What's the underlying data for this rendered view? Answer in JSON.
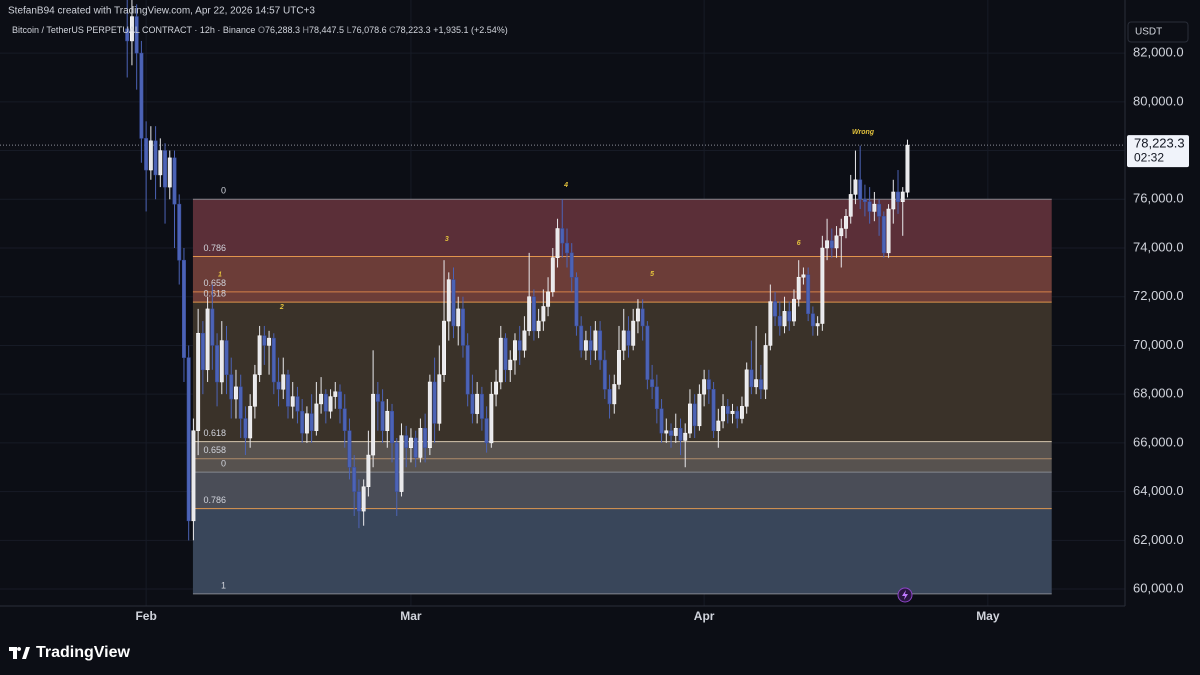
{
  "header": {
    "credit": "StefanB94 created with TradingView.com, Apr 22, 2026 14:57 UTC+3",
    "logo": "TradingView"
  },
  "chart_data": {
    "type": "candlestick",
    "symbol": "Bitcoin / TetherUS PERPETUAL CONTRACT · 12h · Binance",
    "ohlc_legend": [
      {
        "key": "O",
        "text": "76,288.3"
      },
      {
        "key": "H",
        "text": "78,447.5"
      },
      {
        "key": "L",
        "text": "76,078.6"
      },
      {
        "key": "C",
        "text": "78,223.3"
      }
    ],
    "change": "+1,935.1 (+2.54%)",
    "currency": "USDT",
    "last_price": {
      "value": 78223.3,
      "label": "78,223.3"
    },
    "countdown": "02:32",
    "up_color": "#e9e9ec",
    "down_color": "#4c63b6",
    "candles": [
      [
        83000,
        84500,
        81000,
        82500
      ],
      [
        82500,
        85000,
        81500,
        83500
      ],
      [
        83500,
        84000,
        80500,
        82000
      ],
      [
        82000,
        82500,
        77500,
        78500
      ],
      [
        78500,
        79200,
        75500,
        77200
      ],
      [
        77200,
        79000,
        76800,
        78400
      ],
      [
        78400,
        79000,
        76000,
        77000
      ],
      [
        77000,
        78500,
        76500,
        78000
      ],
      [
        78000,
        78300,
        75000,
        76500
      ],
      [
        76500,
        78000,
        76000,
        77700
      ],
      [
        77700,
        78000,
        74000,
        75800
      ],
      [
        75800,
        76200,
        72500,
        73500
      ],
      [
        73500,
        74000,
        68500,
        69500
      ],
      [
        69500,
        70000,
        62000,
        62800
      ],
      [
        62800,
        67000,
        62000,
        66500
      ],
      [
        66500,
        71500,
        65500,
        70500
      ],
      [
        70500,
        71000,
        68000,
        69000
      ],
      [
        69000,
        72000,
        68500,
        71500
      ],
      [
        71500,
        72500,
        69000,
        70000
      ],
      [
        70000,
        70500,
        67500,
        68500
      ],
      [
        68500,
        71000,
        68000,
        70200
      ],
      [
        70200,
        70800,
        68000,
        68800
      ],
      [
        68800,
        69500,
        67000,
        67800
      ],
      [
        67800,
        69000,
        67000,
        68300
      ],
      [
        68300,
        68800,
        66200,
        67000
      ],
      [
        67000,
        67500,
        65500,
        66200
      ],
      [
        66200,
        68000,
        65800,
        67500
      ],
      [
        67500,
        69200,
        67000,
        68800
      ],
      [
        68800,
        70800,
        68500,
        70400
      ],
      [
        70400,
        70800,
        69200,
        70000
      ],
      [
        70000,
        70600,
        68800,
        70300
      ],
      [
        70300,
        70500,
        68000,
        68500
      ],
      [
        68500,
        69500,
        67500,
        68200
      ],
      [
        68200,
        69500,
        67800,
        68800
      ],
      [
        68800,
        69000,
        67000,
        67500
      ],
      [
        67500,
        68500,
        67000,
        67900
      ],
      [
        67900,
        68300,
        66800,
        67300
      ],
      [
        67300,
        67800,
        66000,
        66400
      ],
      [
        66400,
        67500,
        66000,
        67200
      ],
      [
        67200,
        68000,
        66000,
        66500
      ],
      [
        66500,
        68500,
        66300,
        67600
      ],
      [
        67600,
        68700,
        67200,
        68000
      ],
      [
        68000,
        68200,
        66800,
        67300
      ],
      [
        67300,
        68200,
        67000,
        67900
      ],
      [
        67900,
        68500,
        67400,
        68100
      ],
      [
        68100,
        68400,
        66800,
        67400
      ],
      [
        67400,
        68000,
        65800,
        66500
      ],
      [
        66500,
        67000,
        64500,
        65000
      ],
      [
        65000,
        65500,
        63000,
        64000
      ],
      [
        64000,
        64500,
        62500,
        63200
      ],
      [
        63200,
        64500,
        62600,
        64200
      ],
      [
        64200,
        66500,
        63800,
        65500
      ],
      [
        65500,
        69800,
        65000,
        68000
      ],
      [
        68000,
        68500,
        66500,
        67700
      ],
      [
        67700,
        68200,
        66000,
        66500
      ],
      [
        66500,
        67800,
        65800,
        67300
      ],
      [
        67300,
        67600,
        65200,
        66000
      ],
      [
        66000,
        66200,
        63000,
        64000
      ],
      [
        64000,
        66800,
        63800,
        66300
      ],
      [
        66300,
        66700,
        65000,
        65800
      ],
      [
        65800,
        66600,
        65200,
        66200
      ],
      [
        66200,
        66500,
        65000,
        65400
      ],
      [
        65400,
        67000,
        65200,
        66600
      ],
      [
        66600,
        67200,
        65200,
        65800
      ],
      [
        65800,
        68800,
        65500,
        68500
      ],
      [
        68500,
        69500,
        66000,
        66800
      ],
      [
        66800,
        70000,
        66500,
        68800
      ],
      [
        68800,
        73500,
        68500,
        71000
      ],
      [
        71000,
        73000,
        70200,
        72700
      ],
      [
        72700,
        73200,
        70300,
        70800
      ],
      [
        70800,
        72000,
        70000,
        71500
      ],
      [
        71500,
        72000,
        69500,
        70000
      ],
      [
        70000,
        70500,
        67500,
        68000
      ],
      [
        68000,
        68800,
        66800,
        67200
      ],
      [
        67200,
        68500,
        66800,
        68000
      ],
      [
        68000,
        68300,
        66500,
        67000
      ],
      [
        67000,
        67500,
        65600,
        66000
      ],
      [
        66000,
        68500,
        65800,
        68000
      ],
      [
        68000,
        69000,
        67500,
        68500
      ],
      [
        68500,
        70800,
        68200,
        70300
      ],
      [
        70300,
        70500,
        68500,
        69000
      ],
      [
        69000,
        69800,
        68500,
        69400
      ],
      [
        69400,
        70500,
        68800,
        70200
      ],
      [
        70200,
        70800,
        69200,
        69800
      ],
      [
        69800,
        71200,
        69500,
        70600
      ],
      [
        70600,
        73800,
        70400,
        72000
      ],
      [
        72000,
        72300,
        70200,
        70600
      ],
      [
        70600,
        71500,
        70300,
        71000
      ],
      [
        71000,
        72300,
        70600,
        71600
      ],
      [
        71600,
        72800,
        71200,
        72200
      ],
      [
        72200,
        74000,
        72000,
        73600
      ],
      [
        73600,
        75200,
        73200,
        74800
      ],
      [
        74800,
        76000,
        73600,
        74200
      ],
      [
        74200,
        74800,
        73200,
        73800
      ],
      [
        73800,
        74200,
        72200,
        72800
      ],
      [
        72800,
        73000,
        70400,
        70800
      ],
      [
        70800,
        71200,
        69500,
        69800
      ],
      [
        69800,
        70600,
        69400,
        70200
      ],
      [
        70200,
        70800,
        69200,
        69800
      ],
      [
        69800,
        71000,
        69400,
        70600
      ],
      [
        70600,
        71000,
        69000,
        69400
      ],
      [
        69400,
        69800,
        67800,
        68200
      ],
      [
        68200,
        68800,
        67000,
        67600
      ],
      [
        67600,
        68800,
        67200,
        68400
      ],
      [
        68400,
        70800,
        68200,
        69800
      ],
      [
        69800,
        71500,
        69400,
        70600
      ],
      [
        70600,
        71200,
        69500,
        70000
      ],
      [
        70000,
        71500,
        69800,
        71000
      ],
      [
        71000,
        71900,
        70500,
        71500
      ],
      [
        71500,
        71900,
        70200,
        70800
      ],
      [
        70800,
        71000,
        68200,
        68600
      ],
      [
        68600,
        69200,
        67800,
        68300
      ],
      [
        68300,
        68800,
        66800,
        67400
      ],
      [
        67400,
        67800,
        66000,
        66400
      ],
      [
        66400,
        67000,
        66000,
        66500
      ],
      [
        66500,
        66800,
        65800,
        66300
      ],
      [
        66300,
        67200,
        66000,
        66600
      ],
      [
        66600,
        67000,
        65500,
        66100
      ],
      [
        66100,
        66800,
        65000,
        66400
      ],
      [
        66400,
        68200,
        66200,
        67600
      ],
      [
        67600,
        68000,
        66200,
        66700
      ],
      [
        66700,
        68400,
        66500,
        68000
      ],
      [
        68000,
        69000,
        67500,
        68600
      ],
      [
        68600,
        69000,
        67600,
        68200
      ],
      [
        68200,
        68500,
        66200,
        66500
      ],
      [
        66500,
        67400,
        65800,
        66900
      ],
      [
        66900,
        68000,
        66600,
        67500
      ],
      [
        67500,
        67800,
        66800,
        67200
      ],
      [
        67200,
        67600,
        66800,
        67300
      ],
      [
        67300,
        67500,
        66600,
        67000
      ],
      [
        67000,
        67900,
        66800,
        67500
      ],
      [
        67500,
        69300,
        67200,
        69000
      ],
      [
        69000,
        70200,
        68000,
        68300
      ],
      [
        68300,
        70800,
        68000,
        68600
      ],
      [
        68600,
        69200,
        67800,
        68200
      ],
      [
        68200,
        70500,
        67800,
        70000
      ],
      [
        70000,
        72500,
        69800,
        71800
      ],
      [
        71800,
        72200,
        70800,
        71200
      ],
      [
        71200,
        71800,
        70400,
        70800
      ],
      [
        70800,
        72000,
        70500,
        71400
      ],
      [
        71400,
        71800,
        70600,
        71000
      ],
      [
        71000,
        72300,
        70800,
        71900
      ],
      [
        71900,
        73500,
        71600,
        72800
      ],
      [
        72800,
        73200,
        72500,
        72900
      ],
      [
        72900,
        73200,
        71000,
        71300
      ],
      [
        71300,
        71600,
        70400,
        70800
      ],
      [
        70800,
        71200,
        70400,
        70900
      ],
      [
        70900,
        74500,
        70600,
        74000
      ],
      [
        74000,
        75200,
        73500,
        74300
      ],
      [
        74300,
        74800,
        73600,
        74000
      ],
      [
        74000,
        74900,
        73600,
        74500
      ],
      [
        74500,
        75200,
        73200,
        74800
      ],
      [
        74800,
        75600,
        74400,
        75300
      ],
      [
        75300,
        77000,
        75000,
        76200
      ],
      [
        76200,
        78000,
        75800,
        76800
      ],
      [
        76800,
        78200,
        75600,
        76000
      ],
      [
        76000,
        76600,
        75300,
        75900
      ],
      [
        75900,
        76500,
        75000,
        75500
      ],
      [
        75500,
        76300,
        75100,
        75800
      ],
      [
        75800,
        76000,
        74500,
        75300
      ],
      [
        75300,
        75500,
        73600,
        73800
      ],
      [
        73800,
        75800,
        73600,
        75600
      ],
      [
        75600,
        76800,
        75000,
        76300
      ],
      [
        76300,
        77200,
        75400,
        75900
      ],
      [
        75900,
        76500,
        74500,
        76300
      ],
      [
        76288.3,
        78447.5,
        76078.6,
        78223.3
      ]
    ],
    "xlim": [
      -26.9,
      211
    ],
    "xticks": [
      {
        "value": 4,
        "label": "Feb"
      },
      {
        "value": 60,
        "label": "Mar"
      },
      {
        "value": 122,
        "label": "Apr"
      },
      {
        "value": 182,
        "label": "May"
      }
    ],
    "ylim": [
      59140,
      84180
    ],
    "yticks": [
      {
        "value": 60000,
        "label": "60,000.0"
      },
      {
        "value": 62000,
        "label": "62,000.0"
      },
      {
        "value": 64000,
        "label": "64,000.0"
      },
      {
        "value": 66000,
        "label": "66,000.0"
      },
      {
        "value": 68000,
        "label": "68,000.0"
      },
      {
        "value": 70000,
        "label": "70,000.0"
      },
      {
        "value": 72000,
        "label": "72,000.0"
      },
      {
        "value": 74000,
        "label": "74,000.0"
      },
      {
        "value": 76000,
        "label": "76,000.0"
      },
      {
        "value": 78000,
        "label": "78,000.0"
      },
      {
        "value": 80000,
        "label": "80,000.0"
      },
      {
        "value": 82000,
        "label": "82,000.0"
      }
    ],
    "grid": true,
    "zone_x": [
      13.9,
      195.5
    ],
    "zones": [
      {
        "from": 76000,
        "to": 73650,
        "color": "#5b2f38"
      },
      {
        "from": 73650,
        "to": 71780,
        "color": "#6c3d38"
      },
      {
        "from": 71780,
        "to": 66050,
        "color": "#3a3229"
      },
      {
        "from": 66050,
        "to": 64800,
        "color": "#57524f"
      },
      {
        "from": 64800,
        "to": 63300,
        "color": "#4a4d57"
      },
      {
        "from": 63300,
        "to": 59800,
        "color": "#39465a"
      }
    ],
    "fib_levels": [
      {
        "value": 76000,
        "label": "0",
        "color": "#8d8f96"
      },
      {
        "value": 73650,
        "label": "0.786",
        "color": "#f0a050"
      },
      {
        "value": 72200,
        "label": "0.658",
        "color": "#e0884a"
      },
      {
        "value": 71780,
        "label": "0.618",
        "color": "#f0a050"
      },
      {
        "value": 66050,
        "label": "0.618",
        "color": "#e6d6bc"
      },
      {
        "value": 65350,
        "label": "0.658",
        "color": "#b8906c"
      },
      {
        "value": 64800,
        "label": "0",
        "color": "#8d8f96"
      },
      {
        "value": 63300,
        "label": "0.786",
        "color": "#f0a050"
      },
      {
        "value": 59800,
        "label": "1",
        "color": "#8d8f96"
      }
    ],
    "annotations": [
      {
        "text": "1",
        "at": [
          19.6,
          72900
        ]
      },
      {
        "text": "2",
        "at": [
          32.7,
          71570
        ]
      },
      {
        "text": "3",
        "at": [
          67.6,
          74360
        ]
      },
      {
        "text": "4",
        "at": [
          92.8,
          76580
        ]
      },
      {
        "text": "5",
        "at": [
          111,
          72930
        ]
      },
      {
        "text": "6",
        "at": [
          142,
          74200
        ]
      },
      {
        "text": "Wrong",
        "at": [
          155.6,
          78760
        ]
      }
    ]
  }
}
